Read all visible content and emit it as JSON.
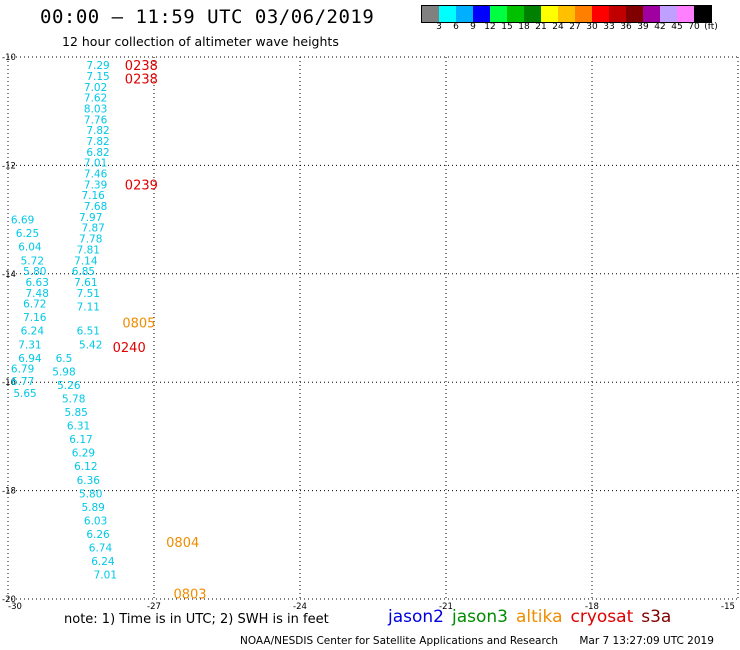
{
  "title": "00:00 – 11:59 UTC 03/06/2019",
  "subtitle": "12 hour collection of altimeter wave heights",
  "colorbar": {
    "colors": [
      "#808080",
      "#00ffff",
      "#00b0ff",
      "#0000ff",
      "#00ff40",
      "#00c000",
      "#008000",
      "#ffff00",
      "#ffc000",
      "#ff8000",
      "#ff0000",
      "#c00000",
      "#800000",
      "#a000a0",
      "#c0a0ff",
      "#ff80ff",
      "#000000"
    ],
    "labels": [
      "3",
      "6",
      "9",
      "12",
      "15",
      "18",
      "21",
      "24",
      "27",
      "30",
      "33",
      "36",
      "39",
      "42",
      "45",
      "70",
      "(ft)"
    ]
  },
  "chart_data": {
    "type": "scatter",
    "title": "00:00 – 11:59 UTC 03/06/2019",
    "subtitle": "12 hour collection of altimeter wave heights",
    "xlim": [
      -30,
      -15
    ],
    "ylim": [
      -20,
      -10
    ],
    "x_ticks": [
      "-30",
      "-27",
      "-24",
      "-21",
      "-18",
      "-15"
    ],
    "y_ticks": [
      "-10",
      "-12",
      "-14",
      "-16",
      "-18",
      "-20"
    ],
    "grid": true,
    "series": [
      {
        "name": "cryosat",
        "color": "#00c8e6",
        "points": [
          {
            "x": -28.15,
            "y": -10.15,
            "v": "7.29"
          },
          {
            "x": -28.15,
            "y": -10.35,
            "v": "7.15"
          },
          {
            "x": -28.2,
            "y": -10.55,
            "v": "7.02"
          },
          {
            "x": -28.2,
            "y": -10.75,
            "v": "7.62"
          },
          {
            "x": -28.2,
            "y": -10.95,
            "v": "8.03"
          },
          {
            "x": -28.2,
            "y": -11.15,
            "v": "7.76"
          },
          {
            "x": -28.15,
            "y": -11.35,
            "v": "7.82"
          },
          {
            "x": -28.15,
            "y": -11.55,
            "v": "7.82"
          },
          {
            "x": -28.15,
            "y": -11.75,
            "v": "6.82"
          },
          {
            "x": -28.2,
            "y": -11.95,
            "v": "7.01"
          },
          {
            "x": -28.2,
            "y": -12.15,
            "v": "7.46"
          },
          {
            "x": -28.2,
            "y": -12.35,
            "v": "7.39"
          },
          {
            "x": -28.25,
            "y": -12.55,
            "v": "7.16"
          },
          {
            "x": -28.2,
            "y": -12.75,
            "v": "7.68"
          },
          {
            "x": -28.3,
            "y": -12.95,
            "v": "7.97"
          },
          {
            "x": -28.25,
            "y": -13.15,
            "v": "7.87"
          },
          {
            "x": -28.3,
            "y": -13.35,
            "v": "7.78"
          },
          {
            "x": -28.35,
            "y": -13.55,
            "v": "7.81"
          },
          {
            "x": -28.4,
            "y": -13.75,
            "v": "7.14"
          },
          {
            "x": -28.45,
            "y": -13.95,
            "v": "6.85"
          },
          {
            "x": -28.4,
            "y": -14.15,
            "v": "7.61"
          },
          {
            "x": -28.35,
            "y": -14.35,
            "v": "7.51"
          },
          {
            "x": -28.35,
            "y": -14.6,
            "v": "7.11"
          },
          {
            "x": -28.35,
            "y": -15.05,
            "v": "6.51"
          },
          {
            "x": -28.3,
            "y": -15.3,
            "v": "5.42"
          }
        ]
      },
      {
        "name": "s3a",
        "color": "#00c8e6",
        "points": [
          {
            "x": -29.7,
            "y": -13.0,
            "v": "6.69"
          },
          {
            "x": -29.6,
            "y": -13.25,
            "v": "6.25"
          },
          {
            "x": -29.55,
            "y": -13.5,
            "v": "6.04"
          },
          {
            "x": -29.5,
            "y": -13.75,
            "v": "5.72"
          },
          {
            "x": -29.45,
            "y": -13.95,
            "v": "5.80"
          },
          {
            "x": -29.4,
            "y": -14.15,
            "v": "6.63"
          },
          {
            "x": -29.4,
            "y": -14.35,
            "v": "7.48"
          },
          {
            "x": -29.45,
            "y": -14.55,
            "v": "6.72"
          },
          {
            "x": -29.45,
            "y": -14.8,
            "v": "7.16"
          },
          {
            "x": -29.5,
            "y": -15.05,
            "v": "6.24"
          },
          {
            "x": -29.55,
            "y": -15.3,
            "v": "7.31"
          },
          {
            "x": -29.55,
            "y": -15.55,
            "v": "6.94"
          },
          {
            "x": -29.7,
            "y": -15.75,
            "v": "6.79"
          },
          {
            "x": -29.7,
            "y": -15.98,
            "v": "6.77"
          },
          {
            "x": -29.65,
            "y": -16.2,
            "v": "5.65"
          },
          {
            "x": -28.85,
            "y": -15.55,
            "v": "6.5"
          },
          {
            "x": -28.85,
            "y": -15.8,
            "v": "5.98"
          },
          {
            "x": -28.75,
            "y": -16.05,
            "v": "5.26"
          },
          {
            "x": -28.65,
            "y": -16.3,
            "v": "5.78"
          },
          {
            "x": -28.6,
            "y": -16.55,
            "v": "5.85"
          },
          {
            "x": -28.55,
            "y": -16.8,
            "v": "6.31"
          },
          {
            "x": -28.5,
            "y": -17.05,
            "v": "6.17"
          },
          {
            "x": -28.45,
            "y": -17.3,
            "v": "6.29"
          },
          {
            "x": -28.4,
            "y": -17.55,
            "v": "6.12"
          },
          {
            "x": -28.35,
            "y": -17.8,
            "v": "6.36"
          },
          {
            "x": -28.3,
            "y": -18.05,
            "v": "5.80"
          },
          {
            "x": -28.25,
            "y": -18.3,
            "v": "5.89"
          },
          {
            "x": -28.2,
            "y": -18.55,
            "v": "6.03"
          },
          {
            "x": -28.15,
            "y": -18.8,
            "v": "6.26"
          },
          {
            "x": -28.1,
            "y": -19.05,
            "v": "6.74"
          },
          {
            "x": -28.05,
            "y": -19.3,
            "v": "6.24"
          },
          {
            "x": -28.0,
            "y": -19.55,
            "v": "7.01"
          }
        ]
      }
    ],
    "pass_labels": [
      {
        "text": "0238",
        "x": -27.6,
        "y": -10.15,
        "color": "#e00000"
      },
      {
        "text": "0238",
        "x": -27.6,
        "y": -10.4,
        "color": "#e00000"
      },
      {
        "text": "0239",
        "x": -27.6,
        "y": -12.35,
        "color": "#e00000"
      },
      {
        "text": "0805",
        "x": -27.65,
        "y": -14.9,
        "color": "#f08c00"
      },
      {
        "text": "0240",
        "x": -27.85,
        "y": -15.35,
        "color": "#e00000"
      },
      {
        "text": "0804",
        "x": -26.75,
        "y": -18.95,
        "color": "#f08c00"
      },
      {
        "text": "0803",
        "x": -26.6,
        "y": -19.9,
        "color": "#f08c00"
      }
    ]
  },
  "note": "note:  1) Time is in UTC; 2) SWH is in feet",
  "legend": [
    {
      "name": "jason2",
      "color": "#0000e0"
    },
    {
      "name": "jason3",
      "color": "#008c00"
    },
    {
      "name": "altika",
      "color": "#f08c00"
    },
    {
      "name": "cryosat",
      "color": "#e00000"
    },
    {
      "name": "s3a",
      "color": "#800000"
    }
  ],
  "footer": {
    "source": "NOAA/NESDIS Center for Satellite Applications and Research",
    "timestamp": "Mar  7 13:27:09 UTC 2019"
  }
}
